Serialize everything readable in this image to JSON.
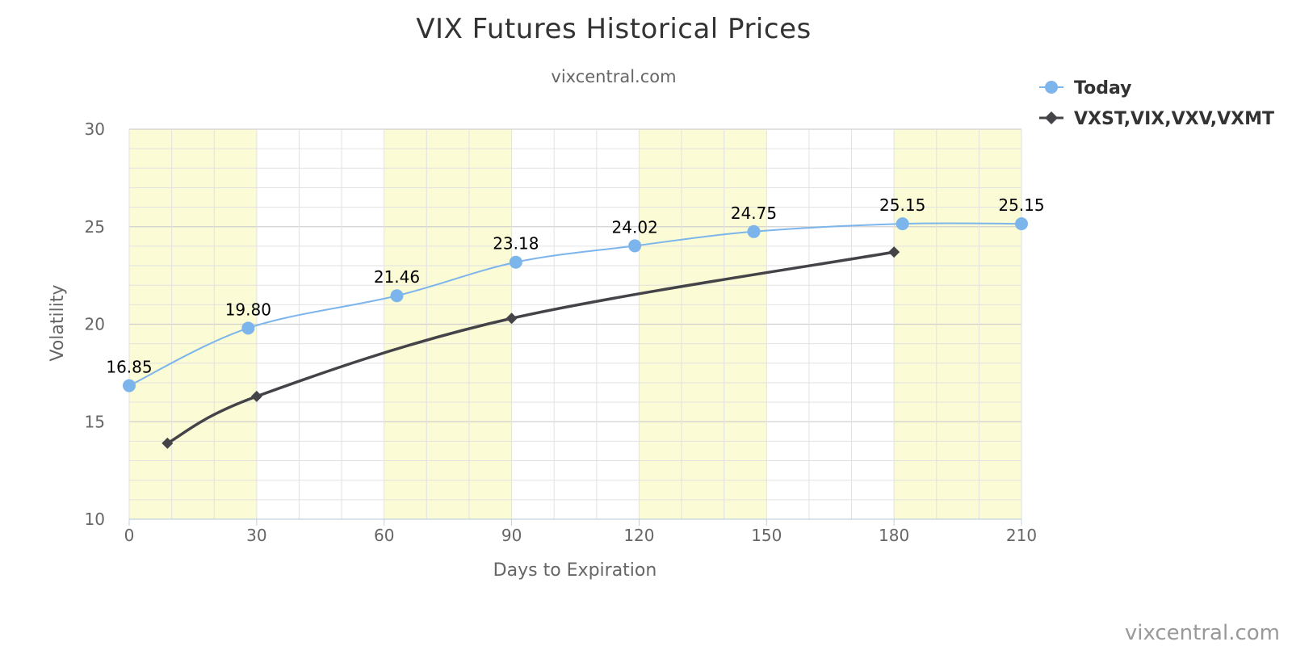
{
  "chart_data": {
    "type": "line",
    "title": "VIX Futures Historical Prices",
    "subtitle": "vixcentral.com",
    "xlabel": "Days to Expiration",
    "ylabel": "Volatility",
    "xlim": [
      0,
      210
    ],
    "ylim": [
      10,
      30
    ],
    "x_ticks": [
      0,
      30,
      60,
      90,
      120,
      150,
      180,
      210
    ],
    "y_ticks": [
      10,
      15,
      20,
      25,
      30
    ],
    "shaded_bands": [
      [
        0,
        30
      ],
      [
        60,
        90
      ],
      [
        120,
        150
      ],
      [
        180,
        210
      ]
    ],
    "grid": true,
    "legend_position": "top-right",
    "series": [
      {
        "name": "Today",
        "color": "#7cb5ec",
        "marker": "circle",
        "x": [
          0,
          28,
          63,
          91,
          119,
          147,
          182,
          210
        ],
        "y": [
          16.85,
          19.8,
          21.46,
          23.18,
          24.02,
          24.75,
          25.15,
          25.15
        ],
        "labels": [
          "16.85",
          "19.80",
          "21.46",
          "23.18",
          "24.02",
          "24.75",
          "25.15",
          "25.15"
        ]
      },
      {
        "name": "VXST,VIX,VXV,VXMT",
        "color": "#434348",
        "marker": "diamond",
        "x": [
          9,
          30,
          90,
          180
        ],
        "y": [
          13.9,
          16.3,
          20.3,
          23.7
        ]
      }
    ],
    "credit": "vixcentral.com"
  }
}
